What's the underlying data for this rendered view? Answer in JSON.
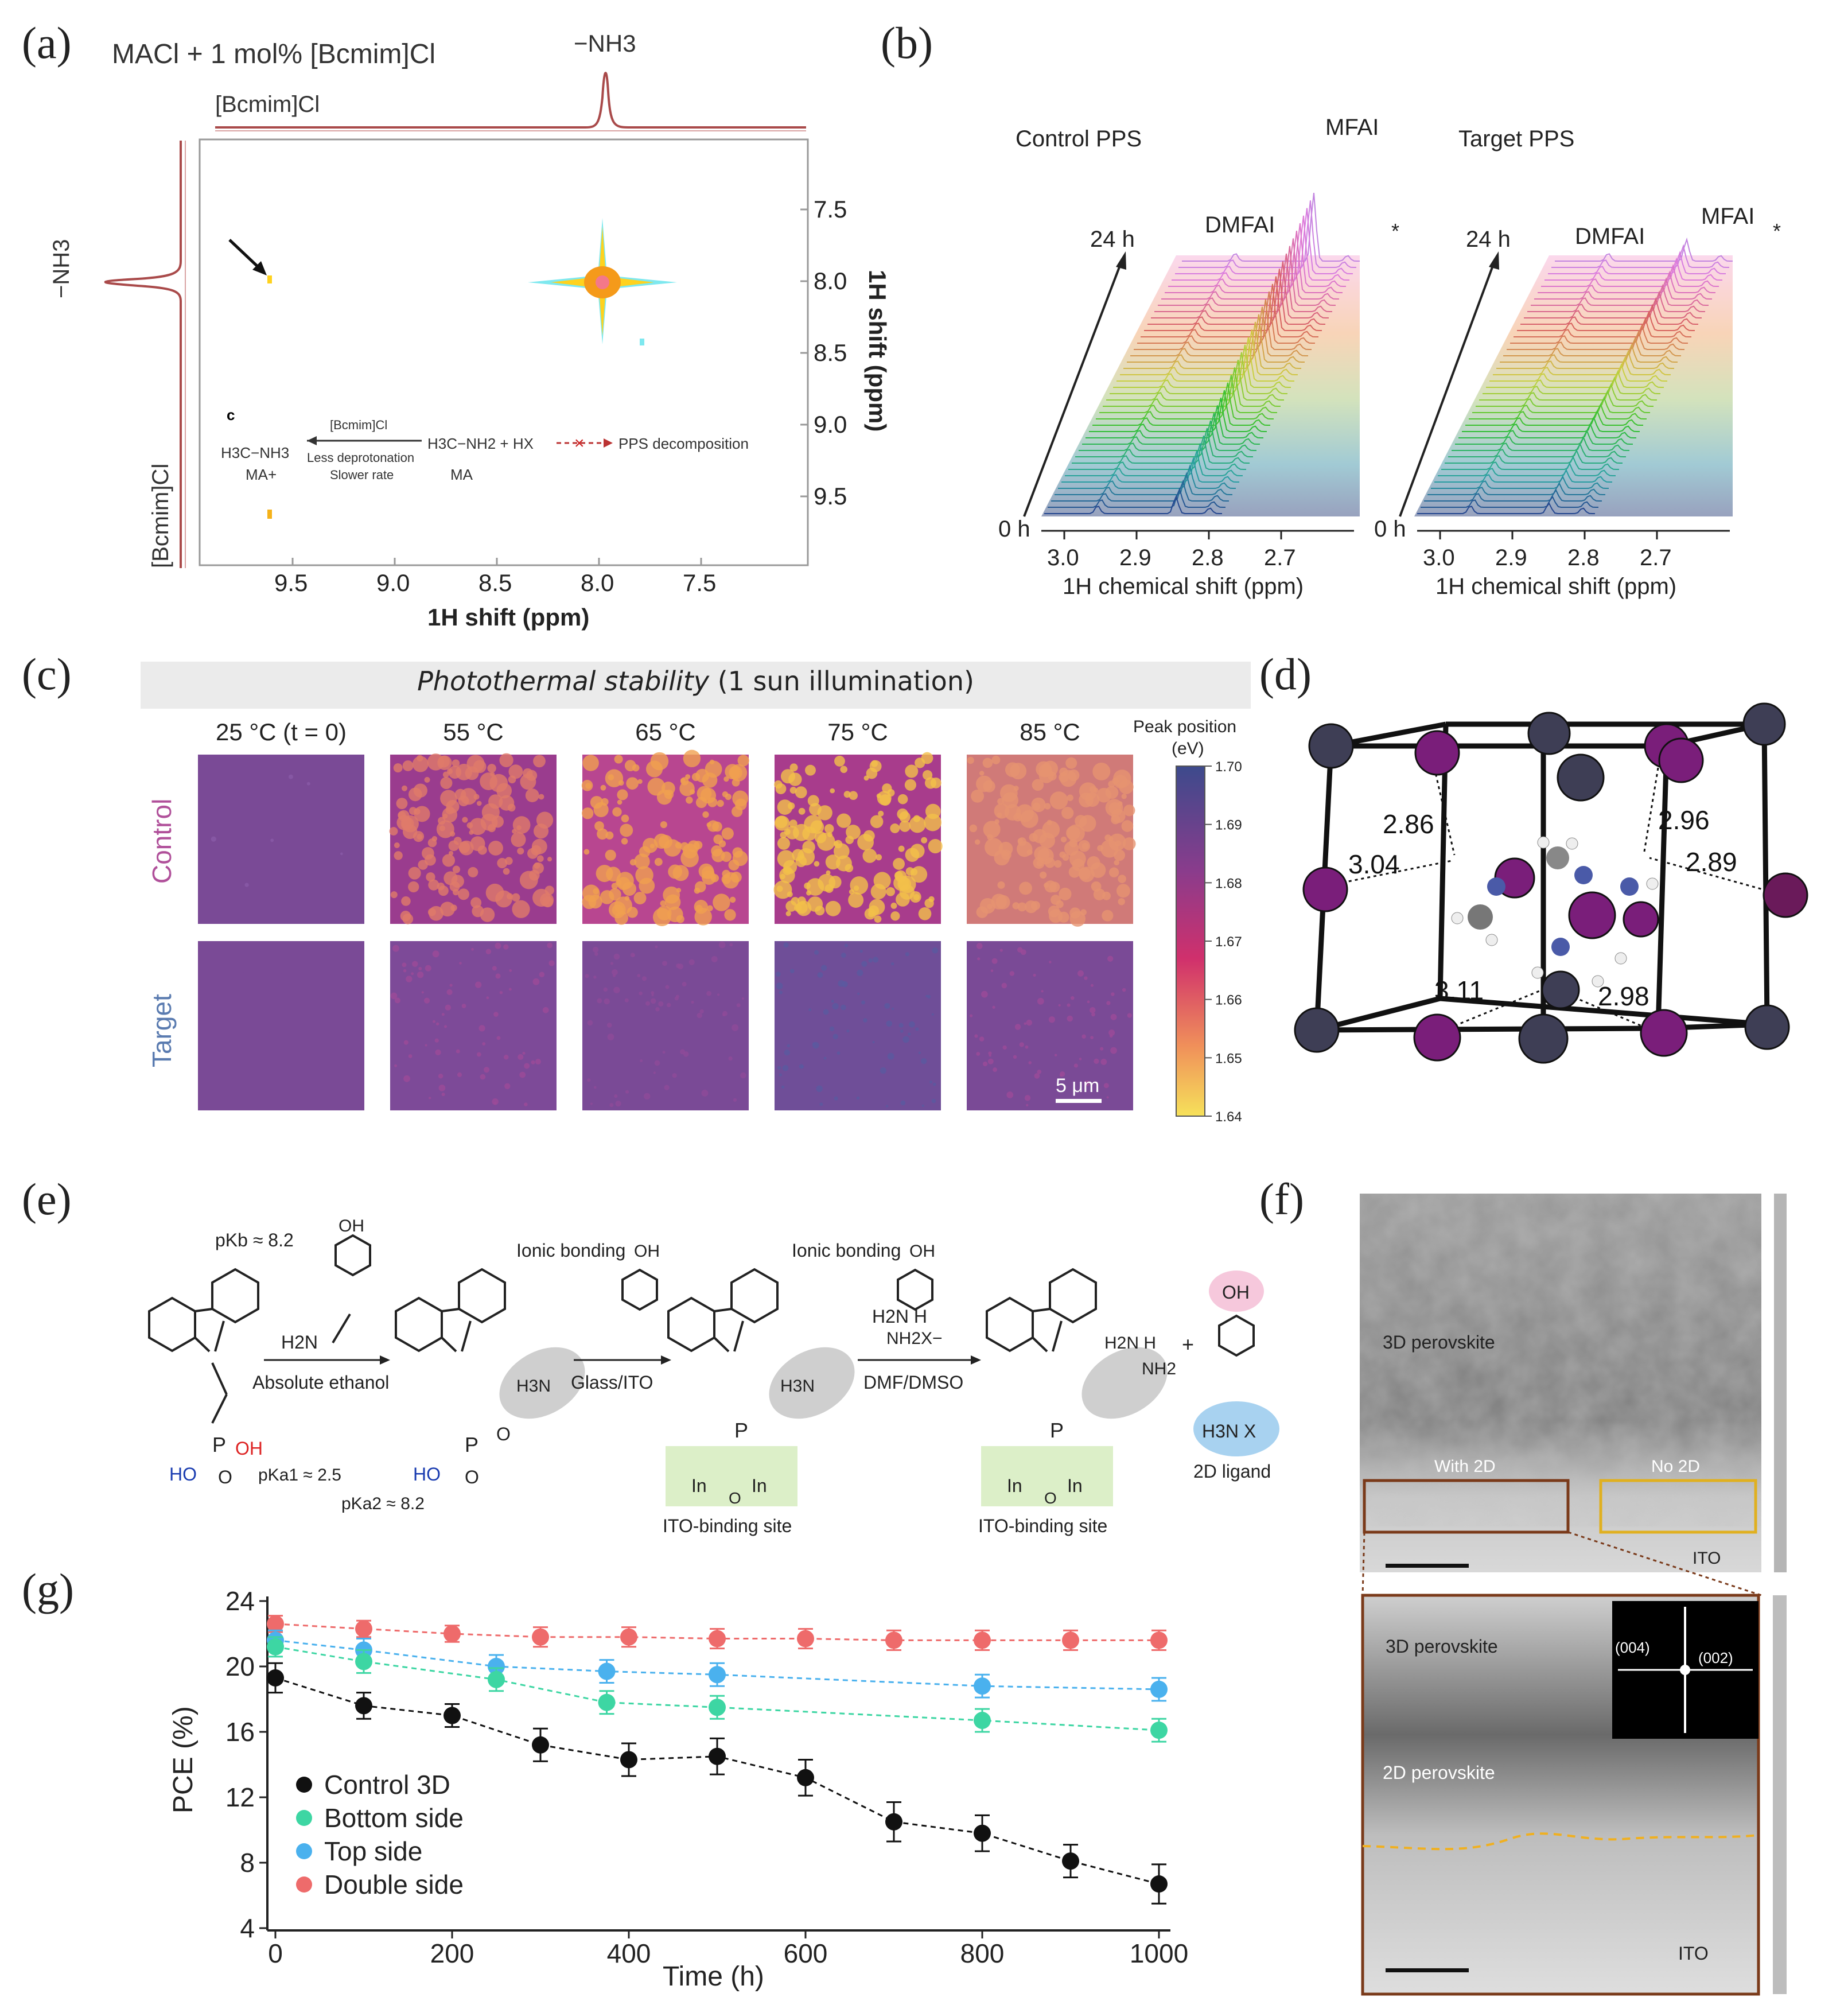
{
  "panel_labels": {
    "a": "(a)",
    "b": "(b)",
    "c": "(c)",
    "d": "(d)",
    "e": "(e)",
    "f": "(f)",
    "g": "(g)"
  },
  "panel_a": {
    "title": "MACl + 1 mol% [Bcmim]Cl",
    "top_trace_label": "[Bcmim]Cl",
    "top_peak_label": "−NH3",
    "left_trace_label": "[Bcmim]Cl",
    "left_peak_label": "−NH3",
    "x_ticks": [
      "9.5",
      "9.0",
      "8.5",
      "8.0",
      "7.5"
    ],
    "y_ticks": [
      "7.5",
      "8.0",
      "8.5",
      "9.0",
      "9.5"
    ],
    "x_label": "1H shift (ppm)",
    "y_label": "1H shift (ppm)",
    "scheme": {
      "tag": "c",
      "left_species": "H3C−NH3",
      "left_name": "MA+",
      "arrow_top": "[Bcmim]Cl",
      "arrow_bottom_1": "Less deprotonation",
      "arrow_bottom_2": "Slower rate",
      "right_species": "H3C−NH2 + HX",
      "right_name": "MA",
      "result": "PPS decomposition"
    }
  },
  "panel_b": {
    "left_title": "Control PPS",
    "right_title": "Target PPS",
    "peak_labels_left": [
      "DMFAI",
      "MFAI",
      "*"
    ],
    "peak_labels_right": [
      "DMFAI",
      "MFAI",
      "*"
    ],
    "time_start": "0 h",
    "time_end": "24 h",
    "x_ticks": [
      "3.0",
      "2.9",
      "2.8",
      "2.7"
    ],
    "x_label": "1H chemical shift (ppm)"
  },
  "panel_c": {
    "banner_italic": "Photothermal stability",
    "banner_rest": "(1 sun illumination)",
    "temperatures": [
      "25 °C (t = 0)",
      "55 °C",
      "65 °C",
      "75 °C",
      "85 °C"
    ],
    "row_labels": [
      "Control",
      "Target"
    ],
    "colorbar_title_1": "Peak position",
    "colorbar_title_2": "(eV)",
    "colorbar_ticks": [
      "1.70",
      "1.69",
      "1.68",
      "1.67",
      "1.66",
      "1.65",
      "1.64"
    ],
    "scale_bar": "5 μm",
    "colors": {
      "control_label": "#b0509a",
      "target_label": "#5a7bb0",
      "banner_bg": "#ebebeb"
    }
  },
  "panel_d": {
    "distances": [
      "2.86",
      "2.96",
      "3.04",
      "2.89",
      "3.11",
      "2.98"
    ]
  },
  "panel_e": {
    "pkb": "pKb ≈ 8.2",
    "pka1": "pKa1 ≈ 2.5",
    "pka2": "pKa2 ≈ 8.2",
    "ionic_bonding_1": "Ionic bonding",
    "ionic_bonding_2": "Ionic bonding",
    "step1": "Absolute ethanol",
    "step2": "Glass/ITO",
    "step3": "DMF/DMSO",
    "ito_site_1": "ITO-binding site",
    "ito_site_2": "ITO-binding site",
    "ligand": "2D ligand",
    "oh": "OH",
    "h2n": "H2N",
    "reagent_top": "H2N   H",
    "reagent_bottom": "NH2X−"
  },
  "panel_f": {
    "top_label": "3D perovskite",
    "with_2d": "With 2D",
    "no_2d": "No 2D",
    "ito_top": "ITO",
    "inset_3d": "3D perovskite",
    "inset_2d": "2D perovskite",
    "ito_bottom": "ITO",
    "fft_004": "(004)",
    "fft_002": "(002)"
  },
  "chart_data": {
    "type": "line",
    "title": "",
    "xlabel": "Time (h)",
    "ylabel": "PCE (%)",
    "xlim": [
      0,
      1000
    ],
    "ylim": [
      4,
      24
    ],
    "x_ticks": [
      "0",
      "200",
      "400",
      "600",
      "800",
      "1000"
    ],
    "y_ticks": [
      "4",
      "8",
      "12",
      "16",
      "20",
      "24"
    ],
    "legend_position": "bottom-left",
    "series": [
      {
        "name": "Control 3D",
        "color": "#111111",
        "x": [
          0,
          100,
          200,
          300,
          400,
          500,
          600,
          700,
          800,
          900,
          1000
        ],
        "y": [
          19.3,
          17.6,
          17.0,
          15.2,
          14.3,
          14.5,
          13.2,
          10.5,
          9.8,
          8.1,
          6.7
        ],
        "err": [
          0.9,
          0.8,
          0.7,
          1.0,
          1.0,
          1.1,
          1.1,
          1.2,
          1.1,
          1.0,
          1.2
        ]
      },
      {
        "name": "Bottom side",
        "color": "#3dd6a3",
        "x": [
          0,
          100,
          250,
          375,
          500,
          800,
          1000
        ],
        "y": [
          21.2,
          20.3,
          19.2,
          17.8,
          17.5,
          16.7,
          16.1
        ],
        "err": [
          0.6,
          0.7,
          0.7,
          0.7,
          0.7,
          0.7,
          0.7
        ]
      },
      {
        "name": "Top side",
        "color": "#4ab1ee",
        "x": [
          0,
          100,
          250,
          375,
          500,
          800,
          1000
        ],
        "y": [
          21.6,
          21.0,
          20.0,
          19.7,
          19.5,
          18.8,
          18.6
        ],
        "err": [
          0.6,
          0.7,
          0.7,
          0.7,
          0.7,
          0.7,
          0.7
        ]
      },
      {
        "name": "Double side",
        "color": "#ee6b6b",
        "x": [
          0,
          100,
          200,
          300,
          400,
          500,
          600,
          700,
          800,
          900,
          1000
        ],
        "y": [
          22.6,
          22.3,
          22.0,
          21.8,
          21.8,
          21.7,
          21.7,
          21.6,
          21.6,
          21.6,
          21.6
        ],
        "err": [
          0.5,
          0.5,
          0.5,
          0.6,
          0.6,
          0.6,
          0.6,
          0.6,
          0.6,
          0.6,
          0.6
        ]
      }
    ]
  }
}
